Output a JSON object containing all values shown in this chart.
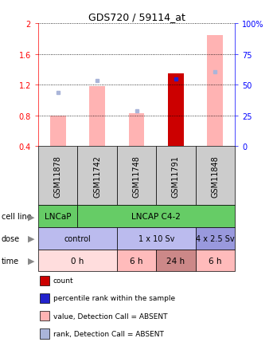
{
  "title": "GDS720 / 59114_at",
  "samples": [
    "GSM11878",
    "GSM11742",
    "GSM11748",
    "GSM11791",
    "GSM11848"
  ],
  "bar_values": [
    0.8,
    1.18,
    0.83,
    1.35,
    1.85
  ],
  "bar_colors": [
    "#ffb3b3",
    "#ffb3b3",
    "#ffb3b3",
    "#cc0000",
    "#ffb3b3"
  ],
  "rank_values": [
    1.1,
    1.25,
    0.86,
    1.28,
    1.37
  ],
  "rank_colors": [
    "#aab5d9",
    "#aab5d9",
    "#aab5d9",
    "#2222cc",
    "#aab5d9"
  ],
  "ylim_left": [
    0.4,
    2.0
  ],
  "ylim_right": [
    0,
    100
  ],
  "yticks_left": [
    0.4,
    0.8,
    1.2,
    1.6,
    2.0
  ],
  "ytick_labels_left": [
    "0.4",
    "0.8",
    "1.2",
    "1.6",
    "2"
  ],
  "yticks_right": [
    0,
    25,
    50,
    75,
    100
  ],
  "ytick_labels_right": [
    "0",
    "25",
    "50",
    "75",
    "100%"
  ],
  "cell_line_data": [
    {
      "label": "LNCaP",
      "span": [
        0,
        1
      ],
      "color": "#66cc66"
    },
    {
      "label": "LNCAP C4-2",
      "span": [
        1,
        5
      ],
      "color": "#66cc66"
    }
  ],
  "dose_data": [
    {
      "label": "control",
      "span": [
        0,
        2
      ],
      "color": "#bbbbee"
    },
    {
      "label": "1 x 10 Sv",
      "span": [
        2,
        4
      ],
      "color": "#bbbbee"
    },
    {
      "label": "4 x 2.5 Sv",
      "span": [
        4,
        5
      ],
      "color": "#9999dd"
    }
  ],
  "time_data": [
    {
      "label": "0 h",
      "span": [
        0,
        2
      ],
      "color": "#ffdddd"
    },
    {
      "label": "6 h",
      "span": [
        2,
        3
      ],
      "color": "#ffbbbb"
    },
    {
      "label": "24 h",
      "span": [
        3,
        4
      ],
      "color": "#cc8888"
    },
    {
      "label": "6 h",
      "span": [
        4,
        5
      ],
      "color": "#ffbbbb"
    }
  ],
  "legend_items": [
    {
      "color": "#cc0000",
      "label": "count"
    },
    {
      "color": "#2222cc",
      "label": "percentile rank within the sample"
    },
    {
      "color": "#ffb3b3",
      "label": "value, Detection Call = ABSENT"
    },
    {
      "color": "#aab5d9",
      "label": "rank, Detection Call = ABSENT"
    }
  ],
  "bar_width": 0.4,
  "n_samples": 5
}
